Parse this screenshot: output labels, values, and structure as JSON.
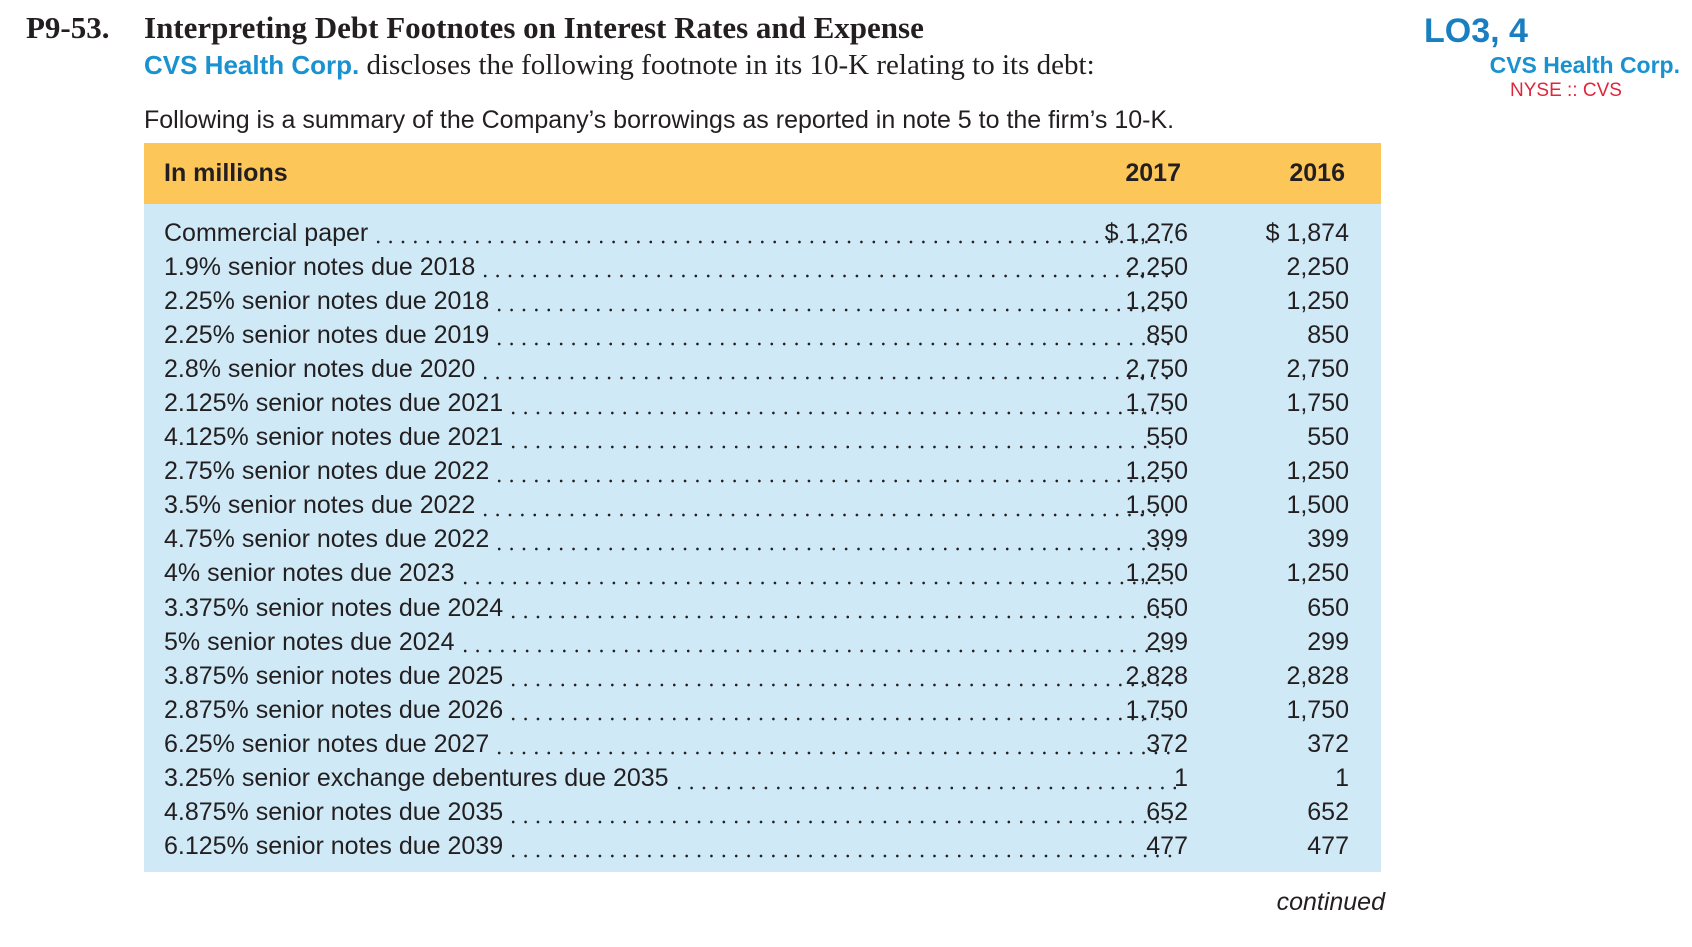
{
  "problem": {
    "number": "P9-53.",
    "title": "Interpreting Debt Footnotes on Interest Rates and Expense",
    "company": "CVS Health Corp.",
    "intro_rest": " discloses the following footnote in its 10-K relating to its debt:",
    "learning_objectives": "LO3, 4",
    "side_company": "CVS Health Corp.",
    "ticker": "NYSE :: CVS"
  },
  "summary": "Following is a summary of the Company’s borrowings as reported in note 5 to the firm’s 10-K.",
  "table": {
    "headers": [
      "In millions",
      "2017",
      "2016"
    ],
    "rows": [
      {
        "label": "Commercial paper",
        "y2017": "$ 1,276",
        "y2016": "$ 1,874"
      },
      {
        "label": "1.9% senior notes due 2018",
        "y2017": "2,250",
        "y2016": "2,250"
      },
      {
        "label": "2.25% senior notes due 2018",
        "y2017": "1,250",
        "y2016": "1,250"
      },
      {
        "label": "2.25% senior notes due 2019",
        "y2017": "850",
        "y2016": "850"
      },
      {
        "label": "2.8% senior notes due 2020",
        "y2017": "2,750",
        "y2016": "2,750"
      },
      {
        "label": "2.125% senior notes due 2021",
        "y2017": "1,750",
        "y2016": "1,750"
      },
      {
        "label": "4.125% senior notes due 2021",
        "y2017": "550",
        "y2016": "550"
      },
      {
        "label": "2.75% senior notes due 2022",
        "y2017": "1,250",
        "y2016": "1,250"
      },
      {
        "label": "3.5% senior notes due 2022",
        "y2017": "1,500",
        "y2016": "1,500"
      },
      {
        "label": "4.75% senior notes due 2022",
        "y2017": "399",
        "y2016": "399"
      },
      {
        "label": "4% senior notes due 2023",
        "y2017": "1,250",
        "y2016": "1,250"
      },
      {
        "label": "3.375% senior notes due 2024",
        "y2017": "650",
        "y2016": "650"
      },
      {
        "label": "5% senior notes due 2024",
        "y2017": "299",
        "y2016": "299"
      },
      {
        "label": "3.875% senior notes due 2025",
        "y2017": "2,828",
        "y2016": "2,828"
      },
      {
        "label": "2.875% senior notes due 2026",
        "y2017": "1,750",
        "y2016": "1,750"
      },
      {
        "label": "6.25% senior notes due 2027",
        "y2017": "372",
        "y2016": "372"
      },
      {
        "label": "3.25% senior exchange debentures due 2035",
        "y2017": "1",
        "y2016": "1"
      },
      {
        "label": "4.875% senior notes due 2035",
        "y2017": "652",
        "y2016": "652"
      },
      {
        "label": "6.125% senior notes due 2039",
        "y2017": "477",
        "y2016": "477"
      }
    ]
  },
  "continued": "continued",
  "colors": {
    "header_bg": "#fdc659",
    "body_bg": "#cfe9f6",
    "brand_blue": "#1a92d0",
    "ticker_red": "#e0263a"
  }
}
